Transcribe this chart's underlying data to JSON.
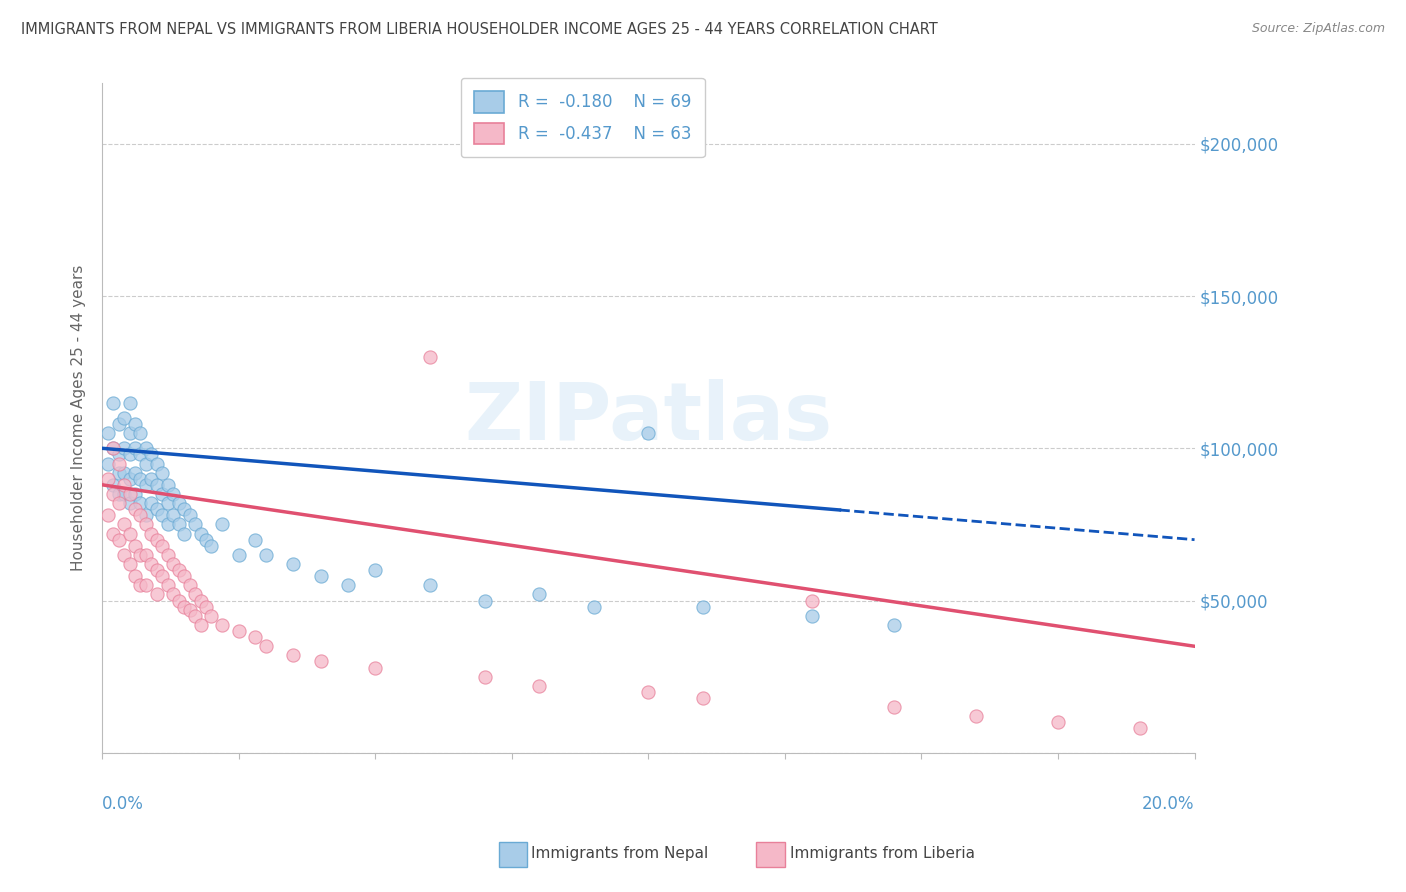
{
  "title": "IMMIGRANTS FROM NEPAL VS IMMIGRANTS FROM LIBERIA HOUSEHOLDER INCOME AGES 25 - 44 YEARS CORRELATION CHART",
  "source": "Source: ZipAtlas.com",
  "ylabel": "Householder Income Ages 25 - 44 years",
  "yticks": [
    0,
    50000,
    100000,
    150000,
    200000
  ],
  "xlim": [
    0.0,
    0.2
  ],
  "ylim": [
    0,
    220000
  ],
  "nepal_color": "#a8cce8",
  "nepal_edge": "#6aaad4",
  "liberia_color": "#f5b8c8",
  "liberia_edge": "#e8809a",
  "nepal_R": -0.18,
  "nepal_N": 69,
  "liberia_R": -0.437,
  "liberia_N": 63,
  "axis_color": "#5599cc",
  "title_color": "#444444",
  "source_color": "#888888",
  "ylabel_color": "#666666",
  "grid_color": "#cccccc",
  "nepal_trend_color": "#1155bb",
  "liberia_trend_color": "#e05070",
  "nepal_x": [
    0.001,
    0.001,
    0.002,
    0.002,
    0.002,
    0.003,
    0.003,
    0.003,
    0.003,
    0.004,
    0.004,
    0.004,
    0.004,
    0.005,
    0.005,
    0.005,
    0.005,
    0.005,
    0.006,
    0.006,
    0.006,
    0.006,
    0.007,
    0.007,
    0.007,
    0.007,
    0.008,
    0.008,
    0.008,
    0.008,
    0.009,
    0.009,
    0.009,
    0.01,
    0.01,
    0.01,
    0.011,
    0.011,
    0.011,
    0.012,
    0.012,
    0.012,
    0.013,
    0.013,
    0.014,
    0.014,
    0.015,
    0.015,
    0.016,
    0.017,
    0.018,
    0.019,
    0.02,
    0.022,
    0.025,
    0.028,
    0.03,
    0.035,
    0.04,
    0.045,
    0.05,
    0.06,
    0.07,
    0.08,
    0.09,
    0.1,
    0.11,
    0.13,
    0.145
  ],
  "nepal_y": [
    105000,
    95000,
    115000,
    100000,
    88000,
    108000,
    98000,
    92000,
    85000,
    110000,
    100000,
    92000,
    85000,
    115000,
    105000,
    98000,
    90000,
    82000,
    108000,
    100000,
    92000,
    85000,
    105000,
    98000,
    90000,
    82000,
    100000,
    95000,
    88000,
    78000,
    98000,
    90000,
    82000,
    95000,
    88000,
    80000,
    92000,
    85000,
    78000,
    88000,
    82000,
    75000,
    85000,
    78000,
    82000,
    75000,
    80000,
    72000,
    78000,
    75000,
    72000,
    70000,
    68000,
    75000,
    65000,
    70000,
    65000,
    62000,
    58000,
    55000,
    60000,
    55000,
    50000,
    52000,
    48000,
    105000,
    48000,
    45000,
    42000
  ],
  "liberia_x": [
    0.001,
    0.001,
    0.002,
    0.002,
    0.002,
    0.003,
    0.003,
    0.003,
    0.004,
    0.004,
    0.004,
    0.005,
    0.005,
    0.005,
    0.006,
    0.006,
    0.006,
    0.007,
    0.007,
    0.007,
    0.008,
    0.008,
    0.008,
    0.009,
    0.009,
    0.01,
    0.01,
    0.01,
    0.011,
    0.011,
    0.012,
    0.012,
    0.013,
    0.013,
    0.014,
    0.014,
    0.015,
    0.015,
    0.016,
    0.016,
    0.017,
    0.017,
    0.018,
    0.018,
    0.019,
    0.02,
    0.022,
    0.025,
    0.028,
    0.03,
    0.035,
    0.04,
    0.05,
    0.06,
    0.07,
    0.08,
    0.1,
    0.11,
    0.13,
    0.145,
    0.16,
    0.175,
    0.19
  ],
  "liberia_y": [
    90000,
    78000,
    100000,
    85000,
    72000,
    95000,
    82000,
    70000,
    88000,
    75000,
    65000,
    85000,
    72000,
    62000,
    80000,
    68000,
    58000,
    78000,
    65000,
    55000,
    75000,
    65000,
    55000,
    72000,
    62000,
    70000,
    60000,
    52000,
    68000,
    58000,
    65000,
    55000,
    62000,
    52000,
    60000,
    50000,
    58000,
    48000,
    55000,
    47000,
    52000,
    45000,
    50000,
    42000,
    48000,
    45000,
    42000,
    40000,
    38000,
    35000,
    32000,
    30000,
    28000,
    130000,
    25000,
    22000,
    20000,
    18000,
    50000,
    15000,
    12000,
    10000,
    8000
  ]
}
